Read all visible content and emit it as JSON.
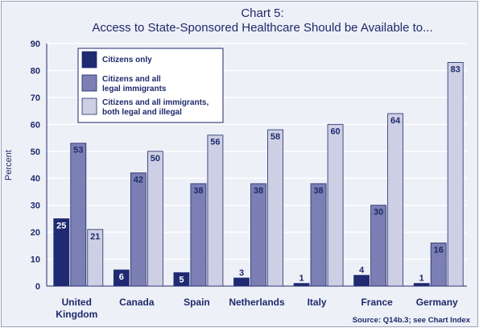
{
  "chart_data": {
    "type": "bar",
    "title": "Chart 5:",
    "subtitle": "Access to State-Sponsored Healthcare Should be Available to...",
    "ylabel": "Percent",
    "xlabel": "",
    "ylim": [
      0,
      90
    ],
    "yticks": [
      "0",
      "10",
      "20",
      "30",
      "40",
      "50",
      "60",
      "70",
      "80",
      "90"
    ],
    "grid": true,
    "legend_position": "top-left",
    "categories": [
      "United\nKingdom",
      "Canada",
      "Spain",
      "Netherlands",
      "Italy",
      "France",
      "Germany"
    ],
    "series": [
      {
        "name": "Citizens only",
        "color": "#1f2a72",
        "values": [
          25,
          6,
          5,
          3,
          1,
          4,
          1
        ]
      },
      {
        "name": "Citizens and all\nlegal immigrants",
        "color": "#7c7fb3",
        "values": [
          53,
          42,
          38,
          38,
          38,
          30,
          16
        ]
      },
      {
        "name": "Citizens and all immigrants,\nboth legal and illegal",
        "color": "#cdd0e4",
        "values": [
          21,
          50,
          56,
          58,
          60,
          64,
          83
        ]
      }
    ],
    "source": "Source: Q14b.3; see Chart Index"
  }
}
